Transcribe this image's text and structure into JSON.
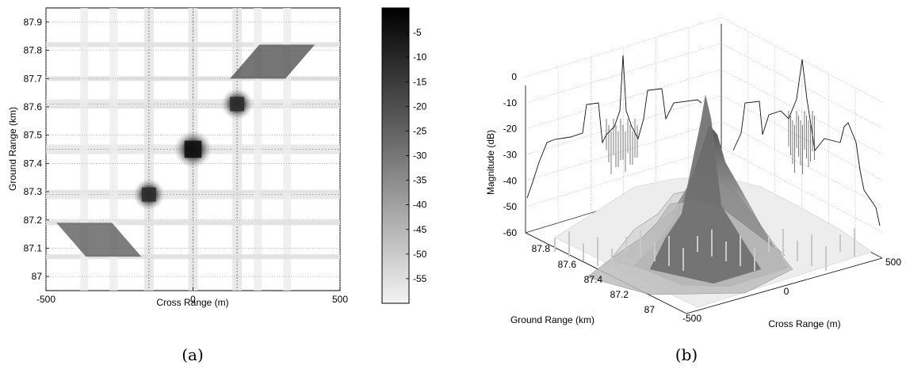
{
  "chart_data": [
    {
      "panel": "(a)",
      "type": "heatmap",
      "xlabel": "Cross Range (m)",
      "ylabel": "Ground Range (km)",
      "xlim": [
        -500,
        500
      ],
      "ylim": [
        86.95,
        87.95
      ],
      "x_ticks": [
        "-500",
        "0",
        "500"
      ],
      "y_ticks": [
        "87",
        "87.1",
        "87.2",
        "87.3",
        "87.4",
        "87.5",
        "87.6",
        "87.7",
        "87.8",
        "87.9"
      ],
      "grid": true,
      "colorbar": {
        "range_db": [
          -60,
          0
        ],
        "ticks": [
          "-5",
          "-10",
          "-15",
          "-20",
          "-25",
          "-30",
          "-35",
          "-40",
          "-45",
          "-50",
          "-55"
        ],
        "colormap": "gray (dark = high)"
      },
      "point_targets": [
        {
          "cross_range_m": 0,
          "ground_range_km": 87.45,
          "peak_db": 0
        },
        {
          "cross_range_m": 150,
          "ground_range_km": 87.61,
          "peak_db": -8
        },
        {
          "cross_range_m": -150,
          "ground_range_km": 87.29,
          "peak_db": -8
        }
      ],
      "smeared_targets": [
        {
          "cross_range_from_m": 320,
          "cross_range_to_m": 220,
          "ground_range_from_km": 87.82,
          "ground_range_to_km": 87.7,
          "peak_db": -15
        },
        {
          "cross_range_from_m": -370,
          "cross_range_to_m": -270,
          "ground_range_from_km": 87.19,
          "ground_range_to_km": 87.07,
          "peak_db": -18
        }
      ]
    },
    {
      "panel": "(b)",
      "type": "surface3d",
      "xlabel": "Cross Range (m)",
      "ylabel": "Ground Range (km)",
      "zlabel": "Magnitude (dB)",
      "x_ticks": [
        "-500",
        "0",
        "500"
      ],
      "y_ticks": [
        "87",
        "87.2",
        "87.4",
        "87.6",
        "87.8"
      ],
      "z_ticks": [
        "0",
        "-10",
        "-20",
        "-30",
        "-40",
        "-50",
        "-60"
      ],
      "zlim": [
        -60,
        0
      ],
      "projections": [
        "ground range profile on left wall",
        "cross range profile on right wall"
      ]
    }
  ],
  "captions": {
    "a": "(a)",
    "b": "(b)"
  },
  "colors": {
    "axis": "#000000",
    "grid": "#9a9a9a",
    "peak": "#141414",
    "floor": "#f4f4f4"
  }
}
